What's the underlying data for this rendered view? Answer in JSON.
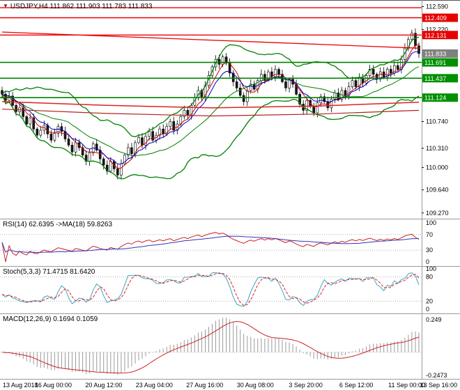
{
  "header": {
    "marker_icon": "▼",
    "title": "USDJPY,H4 111.862 111.903 111.783 111.833"
  },
  "chart_data": {
    "type": "candlestick",
    "symbol": "USDJPY",
    "timeframe": "H4",
    "quote": {
      "open": 111.862,
      "high": 111.903,
      "low": 111.783,
      "close": 111.833
    },
    "x_labels": [
      "13 Aug 2018",
      "16 Aug 00:00",
      "20 Aug 12:00",
      "23 Aug 04:00",
      "27 Aug 16:00",
      "30 Aug 08:00",
      "3 Sep 20:00",
      "6 Sep 12:00",
      "11 Sep 00:00",
      "13 Sep 16:00"
    ],
    "y_axis": {
      "min": 109.2,
      "max": 112.65,
      "ticks": [
        112.59,
        112.22,
        110.74,
        110.31,
        110.0,
        109.64,
        109.27
      ]
    },
    "price_levels": {
      "resistance": [
        112.409,
        112.131
      ],
      "resistance_no_badge": [
        112.57
      ],
      "support": [
        111.691,
        111.437,
        111.124
      ],
      "last": 111.833
    },
    "trendline": {
      "start_price": 112.18,
      "end_price": 111.92
    },
    "slow_ma_lines": [
      {
        "color": "#dd2222",
        "width": 1.5,
        "points": [
          [
            0,
            111.06
          ],
          [
            30,
            111.0
          ],
          [
            60,
            110.96
          ],
          [
            90,
            110.99
          ],
          [
            119,
            111.05
          ]
        ]
      },
      {
        "color": "#b22222",
        "width": 1.2,
        "points": [
          [
            0,
            110.94
          ],
          [
            30,
            110.87
          ],
          [
            60,
            110.83
          ],
          [
            90,
            110.86
          ],
          [
            119,
            110.92
          ]
        ]
      }
    ],
    "closes": [
      111.18,
      111.08,
      111.15,
      111.0,
      110.9,
      110.96,
      110.82,
      110.7,
      110.8,
      110.62,
      110.52,
      110.6,
      110.68,
      110.54,
      110.44,
      110.55,
      110.66,
      110.58,
      110.46,
      110.36,
      110.25,
      110.4,
      110.32,
      110.2,
      110.1,
      110.24,
      110.38,
      110.28,
      110.14,
      110.04,
      109.94,
      110.1,
      109.98,
      109.88,
      110.06,
      110.2,
      110.32,
      110.22,
      110.4,
      110.48,
      110.36,
      110.5,
      110.58,
      110.44,
      110.52,
      110.62,
      110.54,
      110.66,
      110.74,
      110.6,
      110.7,
      110.82,
      110.92,
      110.84,
      111.0,
      111.12,
      111.24,
      111.14,
      111.32,
      111.48,
      111.62,
      111.74,
      111.66,
      111.78,
      111.68,
      111.52,
      111.38,
      111.28,
      111.16,
      111.06,
      111.24,
      111.34,
      111.26,
      111.4,
      111.5,
      111.4,
      111.54,
      111.46,
      111.58,
      111.5,
      111.38,
      111.28,
      111.42,
      111.34,
      111.18,
      111.02,
      110.92,
      111.08,
      110.98,
      110.88,
      111.04,
      111.14,
      111.06,
      110.96,
      111.1,
      111.2,
      111.1,
      111.24,
      111.16,
      111.3,
      111.4,
      111.3,
      111.44,
      111.36,
      111.48,
      111.58,
      111.5,
      111.42,
      111.54,
      111.46,
      111.58,
      111.52,
      111.64,
      111.58,
      111.74,
      111.92,
      112.06,
      112.16,
      111.96,
      111.833
    ],
    "indicators": {
      "bollinger": {
        "period": 20,
        "deviation": 2
      },
      "ma_fast_period": 5,
      "ma_mid_period": 8,
      "rsi": {
        "title": "RSI(14) 62.6395 ->MA(18) 59.8263",
        "period": 14,
        "ma_period": 18,
        "ticks": [
          100,
          70,
          30,
          0
        ],
        "levels": [
          70,
          30
        ]
      },
      "stoch": {
        "title": "Stoch(5,3,3) 71.4715 81.6420",
        "k_period": 5,
        "slowing": 3,
        "d_period": 3,
        "ticks": [
          100,
          80,
          20,
          0
        ],
        "levels": [
          80,
          20
        ]
      },
      "macd": {
        "title": "MACD(12,26,9) 0.1694 0.1059",
        "fast": 12,
        "slow": 26,
        "signal": 9,
        "tick_max": "0.249",
        "tick_min": "-0.2473"
      }
    },
    "colors": {
      "background": "#ffffff",
      "candle_up": "#ffffff",
      "candle_down": "#1a1a1a",
      "candle_outline": "#000000",
      "bollinger": "#008000",
      "ma_fast": "#cc0000",
      "ma_mid": "#0000bb",
      "resistance": "#ee0000",
      "support": "#008000",
      "resistance_badge": "#e60000",
      "support_badge": "#009000",
      "last_badge": "#808080",
      "rsi_line": "#cc2222",
      "rsi_ma": "#3333bb",
      "stoch_k": "#3aa5c5",
      "stoch_d": "#dd2222",
      "macd_hist": "#999999",
      "macd_signal": "#cc2222",
      "grid": "#999999",
      "axis_text": "#000000"
    }
  }
}
